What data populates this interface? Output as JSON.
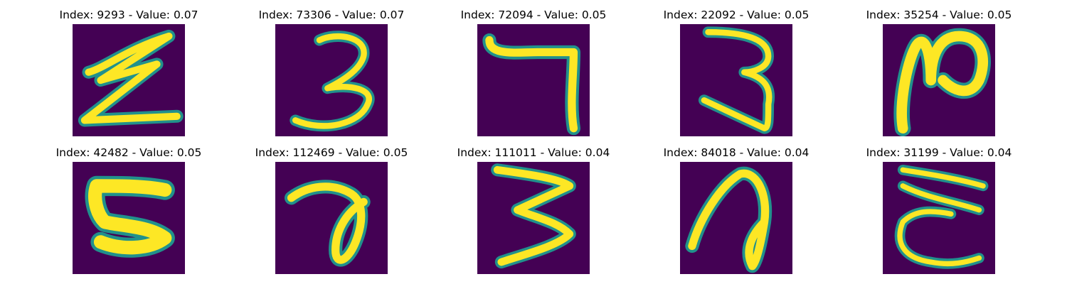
{
  "colors": {
    "background": "#440154",
    "stroke_mid": "#21918c",
    "stroke_core": "#fde725"
  },
  "images": [
    {
      "title": "Index: 9293 - Value: 0.07",
      "glyph": "z-shape"
    },
    {
      "title": "Index: 73306 - Value: 0.07",
      "glyph": "three"
    },
    {
      "title": "Index: 72094 - Value: 0.05",
      "glyph": "seven"
    },
    {
      "title": "Index: 22092 - Value: 0.05",
      "glyph": "three-narrow"
    },
    {
      "title": "Index: 35254 - Value: 0.05",
      "glyph": "loop-shape"
    },
    {
      "title": "Index: 42482 - Value: 0.05",
      "glyph": "c-shape"
    },
    {
      "title": "Index: 112469 - Value: 0.05",
      "glyph": "seven-loop"
    },
    {
      "title": "Index: 111011 - Value: 0.04",
      "glyph": "three-wide"
    },
    {
      "title": "Index: 84018 - Value: 0.04",
      "glyph": "n-loop"
    },
    {
      "title": "Index: 31199 - Value: 0.04",
      "glyph": "e-shape"
    }
  ]
}
